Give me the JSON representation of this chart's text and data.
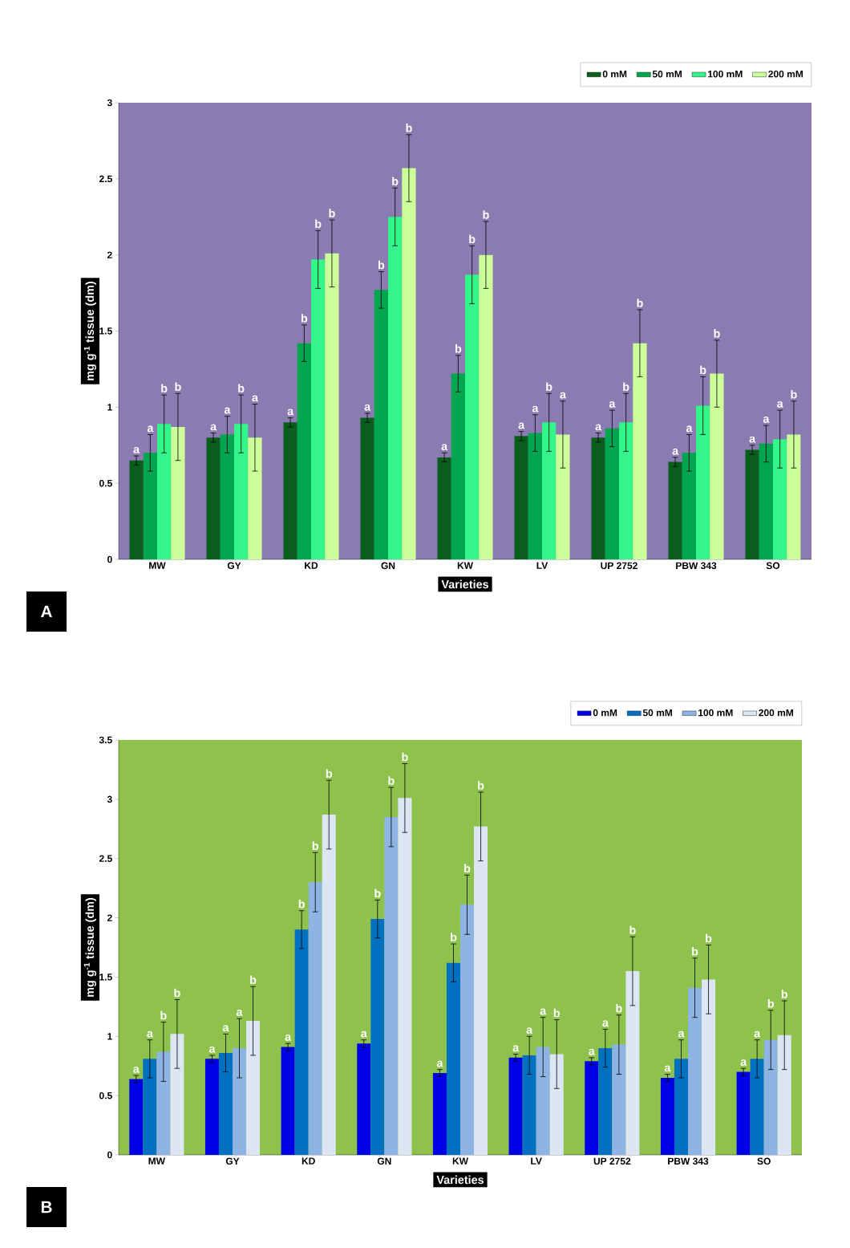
{
  "chart_data": [
    {
      "type": "bar",
      "xlabel": "Varieties",
      "ylabel": "mg g$^{-1}$ tissue (dm)",
      "categories": [
        "MW",
        "GY",
        "KD",
        "GN",
        "KW",
        "LV",
        "UP 2752",
        "PBW 343",
        "SO"
      ],
      "ylim": [
        0,
        3
      ],
      "yticks": [
        0,
        0.5,
        1,
        1.5,
        2,
        2.5,
        3
      ],
      "legend": "top right",
      "annotations": [
        "A"
      ],
      "series": [
        {
          "name": "0 mM",
          "color": "#0b5d1e",
          "values": [
            0.65,
            0.8,
            0.9,
            0.93,
            0.67,
            0.81,
            0.8,
            0.64,
            0.72
          ],
          "errors": [
            0.03,
            0.03,
            0.03,
            0.03,
            0.03,
            0.03,
            0.03,
            0.03,
            0.03
          ],
          "value_labels": [
            "a",
            "a",
            "a",
            "a",
            "a",
            "a",
            "a",
            "a",
            "a"
          ]
        },
        {
          "name": "50 mM",
          "color": "#00a550",
          "values": [
            0.7,
            0.82,
            1.42,
            1.77,
            1.22,
            0.83,
            0.86,
            0.7,
            0.76
          ],
          "errors": [
            0.12,
            0.12,
            0.12,
            0.12,
            0.12,
            0.12,
            0.12,
            0.12,
            0.12
          ],
          "value_labels": [
            "a",
            "a",
            "b",
            "b",
            "b",
            "a",
            "a",
            "a",
            "a"
          ]
        },
        {
          "name": "100 mM",
          "color": "#33f58a",
          "values": [
            0.89,
            0.89,
            1.97,
            2.25,
            1.87,
            0.9,
            0.9,
            1.01,
            0.79
          ],
          "errors": [
            0.19,
            0.19,
            0.19,
            0.19,
            0.19,
            0.19,
            0.19,
            0.19,
            0.19
          ],
          "value_labels": [
            "b",
            "b",
            "b",
            "b",
            "b",
            "b",
            "b",
            "b",
            "a"
          ]
        },
        {
          "name": "200 mM",
          "color": "#ccff99",
          "values": [
            0.87,
            0.8,
            2.01,
            2.57,
            2.0,
            0.82,
            1.42,
            1.22,
            0.82
          ],
          "errors": [
            0.22,
            0.22,
            0.22,
            0.22,
            0.22,
            0.22,
            0.22,
            0.22,
            0.22
          ],
          "value_labels": [
            "b",
            "a",
            "b",
            "b",
            "b",
            "a",
            "b",
            "b",
            "b"
          ]
        }
      ]
    },
    {
      "type": "bar",
      "xlabel": "Varieties",
      "ylabel": "mg g$^{-1}$ tissue (dm)",
      "categories": [
        "MW",
        "GY",
        "KD",
        "GN",
        "KW",
        "LV",
        "UP 2752",
        "PBW 343",
        "SO"
      ],
      "ylim": [
        0,
        3.5
      ],
      "yticks": [
        0,
        0.5,
        1,
        1.5,
        2,
        2.5,
        3,
        3.5
      ],
      "legend": "top right",
      "annotations": [
        "B"
      ],
      "series": [
        {
          "name": "0 mM",
          "color": "#0000e6",
          "values": [
            0.64,
            0.81,
            0.91,
            0.94,
            0.69,
            0.82,
            0.79,
            0.65,
            0.7
          ],
          "errors": [
            0.03,
            0.03,
            0.03,
            0.03,
            0.03,
            0.03,
            0.03,
            0.03,
            0.03
          ],
          "value_labels": [
            "a",
            "a",
            "a",
            "a",
            "a",
            "a",
            "a",
            "a",
            "a"
          ]
        },
        {
          "name": "50 mM",
          "color": "#0070c0",
          "values": [
            0.81,
            0.86,
            1.9,
            1.99,
            1.62,
            0.84,
            0.9,
            0.81,
            0.81
          ],
          "errors": [
            0.16,
            0.16,
            0.16,
            0.16,
            0.16,
            0.16,
            0.16,
            0.16,
            0.16
          ],
          "value_labels": [
            "a",
            "a",
            "b",
            "b",
            "b",
            "a",
            "a",
            "a",
            "a"
          ]
        },
        {
          "name": "100 mM",
          "color": "#8db4e2",
          "values": [
            0.87,
            0.9,
            2.3,
            2.85,
            2.11,
            0.91,
            0.93,
            1.41,
            0.97
          ],
          "errors": [
            0.25,
            0.25,
            0.25,
            0.25,
            0.25,
            0.25,
            0.25,
            0.25,
            0.25
          ],
          "value_labels": [
            "b",
            "a",
            "b",
            "b",
            "b",
            "a",
            "b",
            "b",
            "b"
          ]
        },
        {
          "name": "200 mM",
          "color": "#dce6f2",
          "values": [
            1.02,
            1.13,
            2.87,
            3.01,
            2.77,
            0.85,
            1.55,
            1.48,
            1.01
          ],
          "errors": [
            0.29,
            0.29,
            0.29,
            0.29,
            0.29,
            0.29,
            0.29,
            0.29,
            0.29
          ],
          "value_labels": [
            "b",
            "b",
            "b",
            "b",
            "b",
            "b",
            "b",
            "b",
            "b"
          ]
        }
      ]
    }
  ]
}
